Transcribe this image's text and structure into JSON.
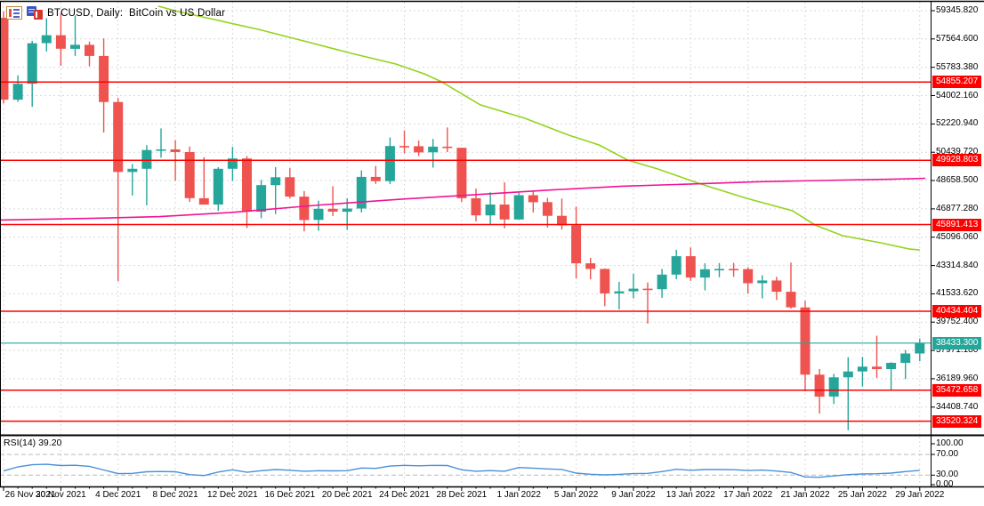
{
  "window": {
    "title": "BTCUSD, Daily:  BitCoin vs US Dollar",
    "symbol": "BTCUSD",
    "timeframe": "Daily",
    "description": "BitCoin vs US Dollar"
  },
  "rsi": {
    "label": "RSI(14) 39.20",
    "period": 14,
    "current_value": 39.2,
    "overbought_level": 70,
    "oversold_level": 30,
    "scale_labels": [
      "100.00",
      "70.00",
      "30.00",
      "0.00"
    ],
    "scale_values": [
      100,
      70,
      30,
      0
    ]
  },
  "colors": {
    "bull": "#26a69a",
    "bear": "#ef5350",
    "level_line": "#ff0000",
    "current_price_line": "#26a69a",
    "ma_green": "#94d31d",
    "ma_magenta": "#f01493",
    "rsi_line": "#4a90d9",
    "grid": "#d9d9d9",
    "rsi_level_dash": "#b9b9b9",
    "frame": "#000000",
    "background": "#ffffff"
  },
  "chart_data": {
    "type": "candlestick",
    "title": "BTCUSD, Daily:  BitCoin vs US Dollar",
    "price_axis": {
      "tick_labels": [
        "59345.820",
        "57564.600",
        "55783.380",
        "54002.160",
        "52220.940",
        "50439.720",
        "48658.500",
        "46877.280",
        "45096.060",
        "43314.840",
        "41533.620",
        "39752.400",
        "37971.180",
        "36189.960",
        "34408.740"
      ],
      "tick_step": 1781.22
    },
    "x_axis": {
      "tick_labels": [
        "26 Nov 2021",
        "30 Nov 2021",
        "4 Dec 2021",
        "8 Dec 2021",
        "12 Dec 2021",
        "16 Dec 2021",
        "20 Dec 2021",
        "24 Dec 2021",
        "28 Dec 2021",
        "1 Jan 2022",
        "5 Jan 2022",
        "9 Jan 2022",
        "13 Jan 2022",
        "17 Jan 2022",
        "21 Jan 2022",
        "25 Jan 2022",
        "29 Jan 2022"
      ],
      "ticks_every_n_candles": 4
    },
    "levels": [
      {
        "value": 54855.207,
        "label": "54855.207"
      },
      {
        "value": 49928.803,
        "label": "49928.803"
      },
      {
        "value": 45891.413,
        "label": "45891.413"
      },
      {
        "value": 40434.404,
        "label": "40434.404"
      },
      {
        "value": 35472.658,
        "label": "35472.658"
      },
      {
        "value": 33520.324,
        "label": "33520.324"
      }
    ],
    "current_price": {
      "value": 38433.3,
      "label": "38433.300"
    },
    "dates": [
      "26 Nov 2021",
      "27 Nov 2021",
      "28 Nov 2021",
      "29 Nov 2021",
      "30 Nov 2021",
      "1 Dec 2021",
      "2 Dec 2021",
      "3 Dec 2021",
      "4 Dec 2021",
      "5 Dec 2021",
      "6 Dec 2021",
      "7 Dec 2021",
      "8 Dec 2021",
      "9 Dec 2021",
      "10 Dec 2021",
      "11 Dec 2021",
      "12 Dec 2021",
      "13 Dec 2021",
      "14 Dec 2021",
      "15 Dec 2021",
      "16 Dec 2021",
      "17 Dec 2021",
      "18 Dec 2021",
      "19 Dec 2021",
      "20 Dec 2021",
      "21 Dec 2021",
      "22 Dec 2021",
      "23 Dec 2021",
      "24 Dec 2021",
      "25 Dec 2021",
      "26 Dec 2021",
      "27 Dec 2021",
      "28 Dec 2021",
      "29 Dec 2021",
      "30 Dec 2021",
      "31 Dec 2021",
      "1 Jan 2022",
      "2 Jan 2022",
      "3 Jan 2022",
      "4 Jan 2022",
      "5 Jan 2022",
      "6 Jan 2022",
      "7 Jan 2022",
      "8 Jan 2022",
      "9 Jan 2022",
      "10 Jan 2022",
      "11 Jan 2022",
      "12 Jan 2022",
      "13 Jan 2022",
      "14 Jan 2022",
      "15 Jan 2022",
      "16 Jan 2022",
      "17 Jan 2022",
      "18 Jan 2022",
      "19 Jan 2022",
      "20 Jan 2022",
      "21 Jan 2022",
      "22 Jan 2022",
      "23 Jan 2022",
      "24 Jan 2022",
      "25 Jan 2022",
      "26 Jan 2022",
      "27 Jan 2022",
      "28 Jan 2022",
      "29 Jan 2022"
    ],
    "ohlc": [
      [
        58900,
        59300,
        53500,
        53750
      ],
      [
        53750,
        55280,
        53610,
        54750
      ],
      [
        54750,
        57450,
        53300,
        57300
      ],
      [
        57300,
        58865,
        56780,
        57800
      ],
      [
        57800,
        59200,
        55875,
        56950
      ],
      [
        56950,
        59050,
        56500,
        57200
      ],
      [
        57200,
        57400,
        55850,
        56500
      ],
      [
        56500,
        57600,
        51680,
        53600
      ],
      [
        53600,
        53860,
        42330,
        49200
      ],
      [
        49200,
        49700,
        47720,
        49400
      ],
      [
        49400,
        50890,
        47100,
        50580
      ],
      [
        50580,
        51940,
        50100,
        50620
      ],
      [
        50620,
        51200,
        48650,
        50450
      ],
      [
        50450,
        50800,
        47320,
        47550
      ],
      [
        47550,
        50125,
        47250,
        47150
      ],
      [
        47150,
        49500,
        46750,
        49400
      ],
      [
        49400,
        50777,
        48640,
        50050
      ],
      [
        50050,
        50200,
        45670,
        46700
      ],
      [
        46700,
        48700,
        46290,
        48370
      ],
      [
        48370,
        49500,
        46550,
        48870
      ],
      [
        48870,
        49440,
        47540,
        47650
      ],
      [
        47650,
        48000,
        45456,
        46180
      ],
      [
        46180,
        47392,
        45500,
        46880
      ],
      [
        46880,
        48300,
        46430,
        46700
      ],
      [
        46700,
        47540,
        45558,
        46900
      ],
      [
        46900,
        49300,
        46650,
        48890
      ],
      [
        48890,
        49580,
        48450,
        48620
      ],
      [
        48620,
        51375,
        48430,
        50830
      ],
      [
        50830,
        51810,
        50380,
        50820
      ],
      [
        50820,
        51170,
        50200,
        50430
      ],
      [
        50430,
        51280,
        49470,
        50790
      ],
      [
        50790,
        52000,
        50450,
        50720
      ],
      [
        50720,
        50725,
        47320,
        47550
      ],
      [
        47550,
        48150,
        46100,
        46470
      ],
      [
        46470,
        47920,
        45900,
        47150
      ],
      [
        47150,
        48550,
        45650,
        46210
      ],
      [
        46210,
        47960,
        46210,
        47740
      ],
      [
        47740,
        47990,
        46650,
        47300
      ],
      [
        47300,
        47570,
        45700,
        46440
      ],
      [
        46440,
        47525,
        45580,
        45840
      ],
      [
        45840,
        47020,
        42500,
        43450
      ],
      [
        43450,
        43800,
        42440,
        43100
      ],
      [
        43100,
        43130,
        40750,
        41560
      ],
      [
        41560,
        42290,
        40550,
        41690
      ],
      [
        41690,
        42800,
        41250,
        41860
      ],
      [
        41860,
        42250,
        39660,
        41820
      ],
      [
        41820,
        43100,
        41280,
        42740
      ],
      [
        42740,
        44300,
        42450,
        43900
      ],
      [
        43900,
        44450,
        42350,
        42560
      ],
      [
        42560,
        43450,
        41750,
        43080
      ],
      [
        43080,
        43470,
        42580,
        43100
      ],
      [
        43100,
        43480,
        42600,
        43090
      ],
      [
        43090,
        43200,
        41550,
        42200
      ],
      [
        42200,
        42700,
        41250,
        42370
      ],
      [
        42370,
        42600,
        41150,
        41660
      ],
      [
        41660,
        43500,
        40600,
        40680
      ],
      [
        40680,
        41100,
        35400,
        36450
      ],
      [
        36450,
        36800,
        34000,
        35070
      ],
      [
        35070,
        36500,
        34600,
        36280
      ],
      [
        36280,
        37550,
        32950,
        36650
      ],
      [
        36650,
        37570,
        35700,
        36950
      ],
      [
        36950,
        38900,
        36250,
        36800
      ],
      [
        36800,
        37230,
        35500,
        37190
      ],
      [
        37190,
        38000,
        36180,
        37780
      ],
      [
        37780,
        38720,
        37300,
        38433.3
      ]
    ],
    "rsi_values": [
      38,
      46,
      50,
      51,
      48.5,
      49,
      47,
      40,
      33,
      33.5,
      36.5,
      37,
      36.5,
      31,
      29.2,
      36,
      40.3,
      35.5,
      38.5,
      40.8,
      39.5,
      37.5,
      38.5,
      38.2,
      38.5,
      43.7,
      43,
      47.5,
      48.9,
      48,
      48.9,
      48.5,
      40.3,
      37.5,
      38.8,
      37.5,
      44.8,
      43.5,
      42,
      41,
      34,
      31.7,
      30.5,
      31.5,
      33,
      33.4,
      36.9,
      41.4,
      39.5,
      40.8,
      40.8,
      40.5,
      39,
      39.7,
      37.9,
      35.2,
      26.5,
      25.9,
      28.5,
      31.1,
      32.3,
      32.8,
      34,
      36.9,
      39.2
    ],
    "moving_averages": [
      {
        "name": "ma-green-long",
        "color_key": "ma_green",
        "points": [
          [
            10.8,
            59630
          ],
          [
            12.2,
            59290
          ],
          [
            14.7,
            58790
          ],
          [
            17.8,
            58170
          ],
          [
            21.2,
            57390
          ],
          [
            24.3,
            56660
          ],
          [
            27.4,
            55990
          ],
          [
            29.4,
            55370
          ],
          [
            30.6,
            54870
          ],
          [
            33.3,
            53420
          ],
          [
            36.4,
            52580
          ],
          [
            39.5,
            51510
          ],
          [
            41.6,
            50900
          ],
          [
            43.6,
            49950
          ],
          [
            45.7,
            49390
          ],
          [
            48.7,
            48440
          ],
          [
            51.9,
            47540
          ],
          [
            55.1,
            46760
          ],
          [
            56.7,
            45860
          ],
          [
            58.6,
            45190
          ],
          [
            61.3,
            44740
          ],
          [
            63.3,
            44350
          ],
          [
            64,
            44290
          ]
        ]
      },
      {
        "name": "ma-magenta-mid",
        "color_key": "ma_magenta",
        "points": [
          [
            -0.3,
            46170
          ],
          [
            6,
            46280
          ],
          [
            10.9,
            46390
          ],
          [
            15.9,
            46650
          ],
          [
            22.1,
            47120
          ],
          [
            27.7,
            47480
          ],
          [
            33.3,
            47790
          ],
          [
            38.3,
            48070
          ],
          [
            43.2,
            48300
          ],
          [
            48.7,
            48460
          ],
          [
            52.6,
            48580
          ],
          [
            56.9,
            48660
          ],
          [
            61.9,
            48740
          ],
          [
            64.4,
            48800
          ]
        ]
      }
    ]
  }
}
